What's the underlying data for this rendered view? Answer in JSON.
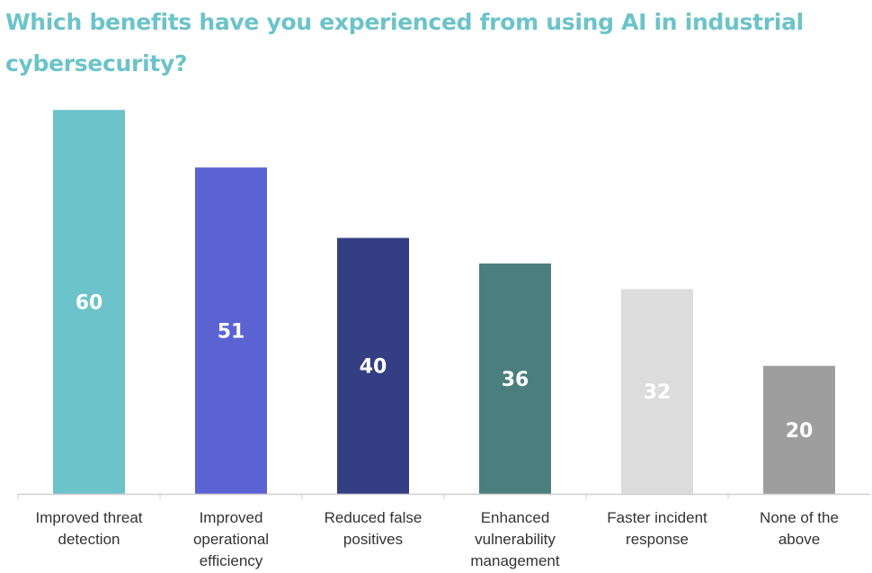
{
  "chart_data": {
    "type": "bar",
    "title": "Which benefits have you experienced from using AI in industrial cybersecurity?",
    "xlabel": "",
    "ylabel": "",
    "ylim": [
      0,
      62
    ],
    "grid": false,
    "legend": "none",
    "categories": [
      [
        "Improved threat",
        "detection"
      ],
      [
        "Improved",
        "operational",
        "efficiency"
      ],
      [
        "Reduced false",
        "positives"
      ],
      [
        "Enhanced",
        "vulnerability",
        "management"
      ],
      [
        "Faster incident",
        "response"
      ],
      [
        "None of the",
        "above"
      ]
    ],
    "values": [
      60,
      51,
      40,
      36,
      32,
      20
    ],
    "colors": [
      "#6cc3c9",
      "#5b63d3",
      "#343f83",
      "#4a7f7d",
      "#dcdcdc",
      "#9e9e9e"
    ],
    "value_label_color": "#ffffff",
    "axis_color": "#d0d0d0"
  }
}
